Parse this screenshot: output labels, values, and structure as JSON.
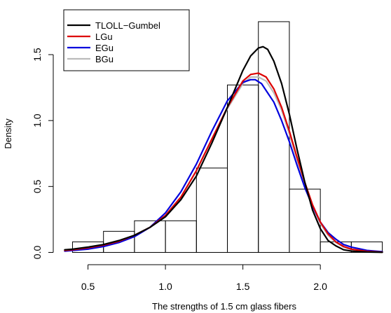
{
  "chart_data": {
    "type": "histogram",
    "title": "",
    "xlabel": "The strengths of 1.5 cm glass fibers",
    "ylabel": "Density",
    "xlim": [
      0.33,
      2.42
    ],
    "ylim": [
      -0.04,
      1.84
    ],
    "x_ticks": [
      0.5,
      1.0,
      1.5,
      2.0
    ],
    "x_tick_labels": [
      "0.5",
      "1.0",
      "1.5",
      "2.0"
    ],
    "y_ticks": [
      0.0,
      0.5,
      1.0,
      1.5
    ],
    "y_tick_labels": [
      "0.0",
      "0.5",
      "1.0",
      "1.5"
    ],
    "histogram": {
      "bin_edges": [
        0.4,
        0.6,
        0.8,
        1.0,
        1.2,
        1.4,
        1.6,
        1.8,
        2.0,
        2.2,
        2.4
      ],
      "density": [
        0.08,
        0.16,
        0.24,
        0.24,
        0.64,
        1.27,
        1.75,
        0.48,
        0.08,
        0.08
      ]
    },
    "series": [
      {
        "name": "TLOLL−Gumbel",
        "color": "#000000",
        "x": [
          0.35,
          0.4,
          0.5,
          0.6,
          0.7,
          0.8,
          0.9,
          1.0,
          1.1,
          1.2,
          1.3,
          1.4,
          1.5,
          1.55,
          1.6,
          1.63,
          1.66,
          1.7,
          1.75,
          1.8,
          1.85,
          1.9,
          1.95,
          2.0,
          2.05,
          2.1,
          2.15,
          2.2,
          2.3,
          2.4
        ],
        "y": [
          0.02,
          0.025,
          0.04,
          0.06,
          0.09,
          0.13,
          0.19,
          0.27,
          0.4,
          0.58,
          0.83,
          1.1,
          1.38,
          1.49,
          1.55,
          1.56,
          1.54,
          1.45,
          1.28,
          1.05,
          0.78,
          0.53,
          0.32,
          0.18,
          0.09,
          0.05,
          0.02,
          0.01,
          0.003,
          0.001
        ]
      },
      {
        "name": "LGu",
        "color": "#dd0000",
        "x": [
          0.35,
          0.4,
          0.5,
          0.6,
          0.7,
          0.8,
          0.9,
          1.0,
          1.1,
          1.2,
          1.3,
          1.4,
          1.5,
          1.55,
          1.6,
          1.65,
          1.7,
          1.75,
          1.8,
          1.85,
          1.9,
          1.95,
          2.0,
          2.05,
          2.1,
          2.15,
          2.2,
          2.3,
          2.4
        ],
        "y": [
          0.015,
          0.02,
          0.035,
          0.055,
          0.085,
          0.13,
          0.19,
          0.28,
          0.42,
          0.62,
          0.86,
          1.1,
          1.3,
          1.35,
          1.36,
          1.33,
          1.24,
          1.1,
          0.92,
          0.72,
          0.53,
          0.36,
          0.23,
          0.14,
          0.08,
          0.045,
          0.025,
          0.008,
          0.002
        ]
      },
      {
        "name": "EGu",
        "color": "#0000dd",
        "x": [
          0.35,
          0.4,
          0.5,
          0.6,
          0.7,
          0.8,
          0.9,
          1.0,
          1.1,
          1.2,
          1.3,
          1.4,
          1.5,
          1.55,
          1.58,
          1.62,
          1.7,
          1.75,
          1.8,
          1.85,
          1.9,
          1.95,
          2.0,
          2.05,
          2.1,
          2.15,
          2.2,
          2.3,
          2.4
        ],
        "y": [
          0.01,
          0.015,
          0.025,
          0.045,
          0.075,
          0.12,
          0.19,
          0.3,
          0.46,
          0.67,
          0.92,
          1.15,
          1.29,
          1.31,
          1.31,
          1.28,
          1.14,
          1.0,
          0.84,
          0.66,
          0.49,
          0.35,
          0.23,
          0.15,
          0.1,
          0.06,
          0.04,
          0.015,
          0.005
        ]
      },
      {
        "name": "BGu",
        "color": "#bbbbbb",
        "x": [
          0.35,
          0.4,
          0.5,
          0.6,
          0.7,
          0.8,
          0.9,
          1.0,
          1.1,
          1.2,
          1.3,
          1.4,
          1.5,
          1.55,
          1.6,
          1.65,
          1.7,
          1.75,
          1.8,
          1.85,
          1.9,
          1.95,
          2.0,
          2.05,
          2.1,
          2.15,
          2.2,
          2.3,
          2.4
        ],
        "y": [
          0.015,
          0.02,
          0.035,
          0.055,
          0.085,
          0.13,
          0.19,
          0.28,
          0.42,
          0.62,
          0.86,
          1.09,
          1.28,
          1.33,
          1.33,
          1.3,
          1.21,
          1.08,
          0.9,
          0.7,
          0.52,
          0.35,
          0.22,
          0.13,
          0.075,
          0.04,
          0.022,
          0.007,
          0.002
        ]
      }
    ],
    "legend": {
      "position": "top-left",
      "entries": [
        "TLOLL−Gumbel",
        "LGu",
        "EGu",
        "BGu"
      ]
    },
    "grid": false
  }
}
